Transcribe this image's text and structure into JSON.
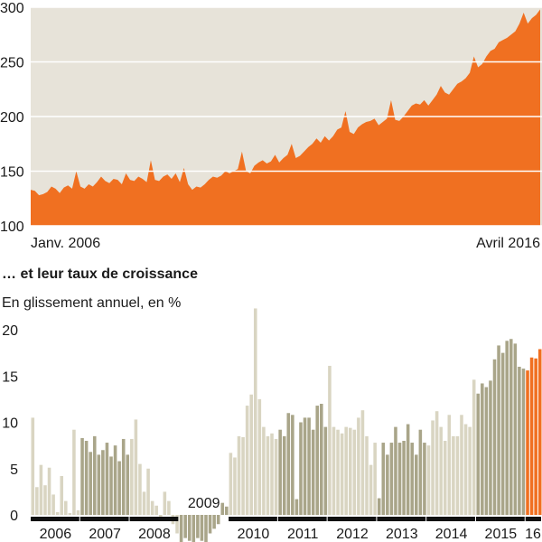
{
  "chart_data": [
    {
      "type": "area",
      "color": "#f07021",
      "background": "#e7e3d9",
      "grid": true,
      "ylim": [
        100,
        300
      ],
      "yticks": [
        100,
        150,
        200,
        250,
        300
      ],
      "xlabels": [
        "Janv. 2006",
        "Avril 2016"
      ],
      "values": [
        133,
        132,
        128,
        129,
        131,
        136,
        134,
        130,
        135,
        137,
        134,
        150,
        136,
        134,
        138,
        136,
        140,
        145,
        141,
        139,
        143,
        142,
        138,
        148,
        142,
        141,
        145,
        143,
        140,
        160,
        142,
        141,
        145,
        147,
        143,
        148,
        140,
        153,
        138,
        133,
        136,
        135,
        138,
        142,
        145,
        144,
        146,
        150,
        148,
        150,
        152,
        168,
        150,
        148,
        155,
        158,
        160,
        157,
        159,
        165,
        158,
        162,
        165,
        175,
        162,
        164,
        168,
        172,
        175,
        180,
        176,
        182,
        178,
        182,
        188,
        190,
        205,
        186,
        184,
        190,
        193,
        195,
        196,
        198,
        192,
        195,
        198,
        215,
        197,
        196,
        200,
        205,
        210,
        212,
        211,
        215,
        210,
        215,
        220,
        228,
        222,
        220,
        225,
        230,
        232,
        235,
        240,
        255,
        245,
        248,
        255,
        260,
        262,
        268,
        270,
        272,
        275,
        278,
        285,
        295,
        285,
        290,
        293,
        298
      ]
    },
    {
      "type": "bar",
      "title": "… et leur taux de croissance",
      "subtitle": "En glissement annuel, en %",
      "ylim": [
        -2.9,
        23
      ],
      "yticks": [
        0,
        5,
        10,
        15,
        20
      ],
      "series": [
        {
          "name": "2006",
          "color": "#d9d5c2",
          "values": [
            10.5,
            3,
            5.4,
            3.2,
            5.1,
            2.2,
            0.3,
            4.2,
            1.5,
            0.2,
            9.2,
            0.5
          ]
        },
        {
          "name": "2007",
          "color": "#a9a589",
          "values": [
            8.3,
            8,
            6.8,
            8.5,
            6.5,
            7,
            7.8,
            6.3,
            7.5,
            5.8,
            8.2,
            6.5
          ]
        },
        {
          "name": "2008",
          "color": "#d9d5c2",
          "values": [
            8.2,
            10.3,
            5.5,
            2.5,
            5,
            1.5,
            1,
            -0.5,
            2.5,
            1.5,
            -1,
            -2
          ]
        },
        {
          "name": "2009",
          "color": "#a9a589",
          "values": [
            -3,
            -2.5,
            -2.8,
            -3,
            -2.5,
            -2.8,
            -3,
            -2,
            -1.5,
            -1,
            1.3,
            0.9
          ]
        },
        {
          "name": "2010",
          "color": "#d9d5c2",
          "values": [
            6.7,
            6.2,
            8.5,
            8.4,
            11.8,
            13,
            22.3,
            12.5,
            9.5,
            8.5,
            8.8,
            8.2
          ]
        },
        {
          "name": "2011",
          "color": "#a9a589",
          "values": [
            9.2,
            8.5,
            11,
            10.8,
            1.7,
            10,
            10.5,
            10.5,
            9.2,
            11.8,
            12,
            9.5
          ]
        },
        {
          "name": "2012",
          "color": "#d9d5c2",
          "values": [
            16.1,
            9.5,
            9.2,
            8.8,
            9.5,
            9.4,
            9.2,
            10.5,
            11.3,
            8.5,
            5.4,
            7.8
          ]
        },
        {
          "name": "2013",
          "color": "#a9a589",
          "values": [
            1.8,
            7.8,
            6.5,
            7.8,
            9.5,
            7.8,
            8,
            9.8,
            7.8,
            6.5,
            9.2,
            7.8
          ]
        },
        {
          "name": "2014",
          "color": "#d9d5c2",
          "values": [
            7.5,
            10.2,
            11.2,
            9.5,
            8,
            10.8,
            8.5,
            8.5,
            10.8,
            9.8,
            9.5,
            14.6
          ]
        },
        {
          "name": "2015",
          "color": "#a9a589",
          "values": [
            13.1,
            14.2,
            13.8,
            14.5,
            16.8,
            18.3,
            17.5,
            18.8,
            19,
            18.5,
            16,
            15.8
          ]
        },
        {
          "name": "16",
          "color": "#f07021",
          "values": [
            15.6,
            17,
            16.9,
            17.9
          ]
        }
      ]
    }
  ]
}
